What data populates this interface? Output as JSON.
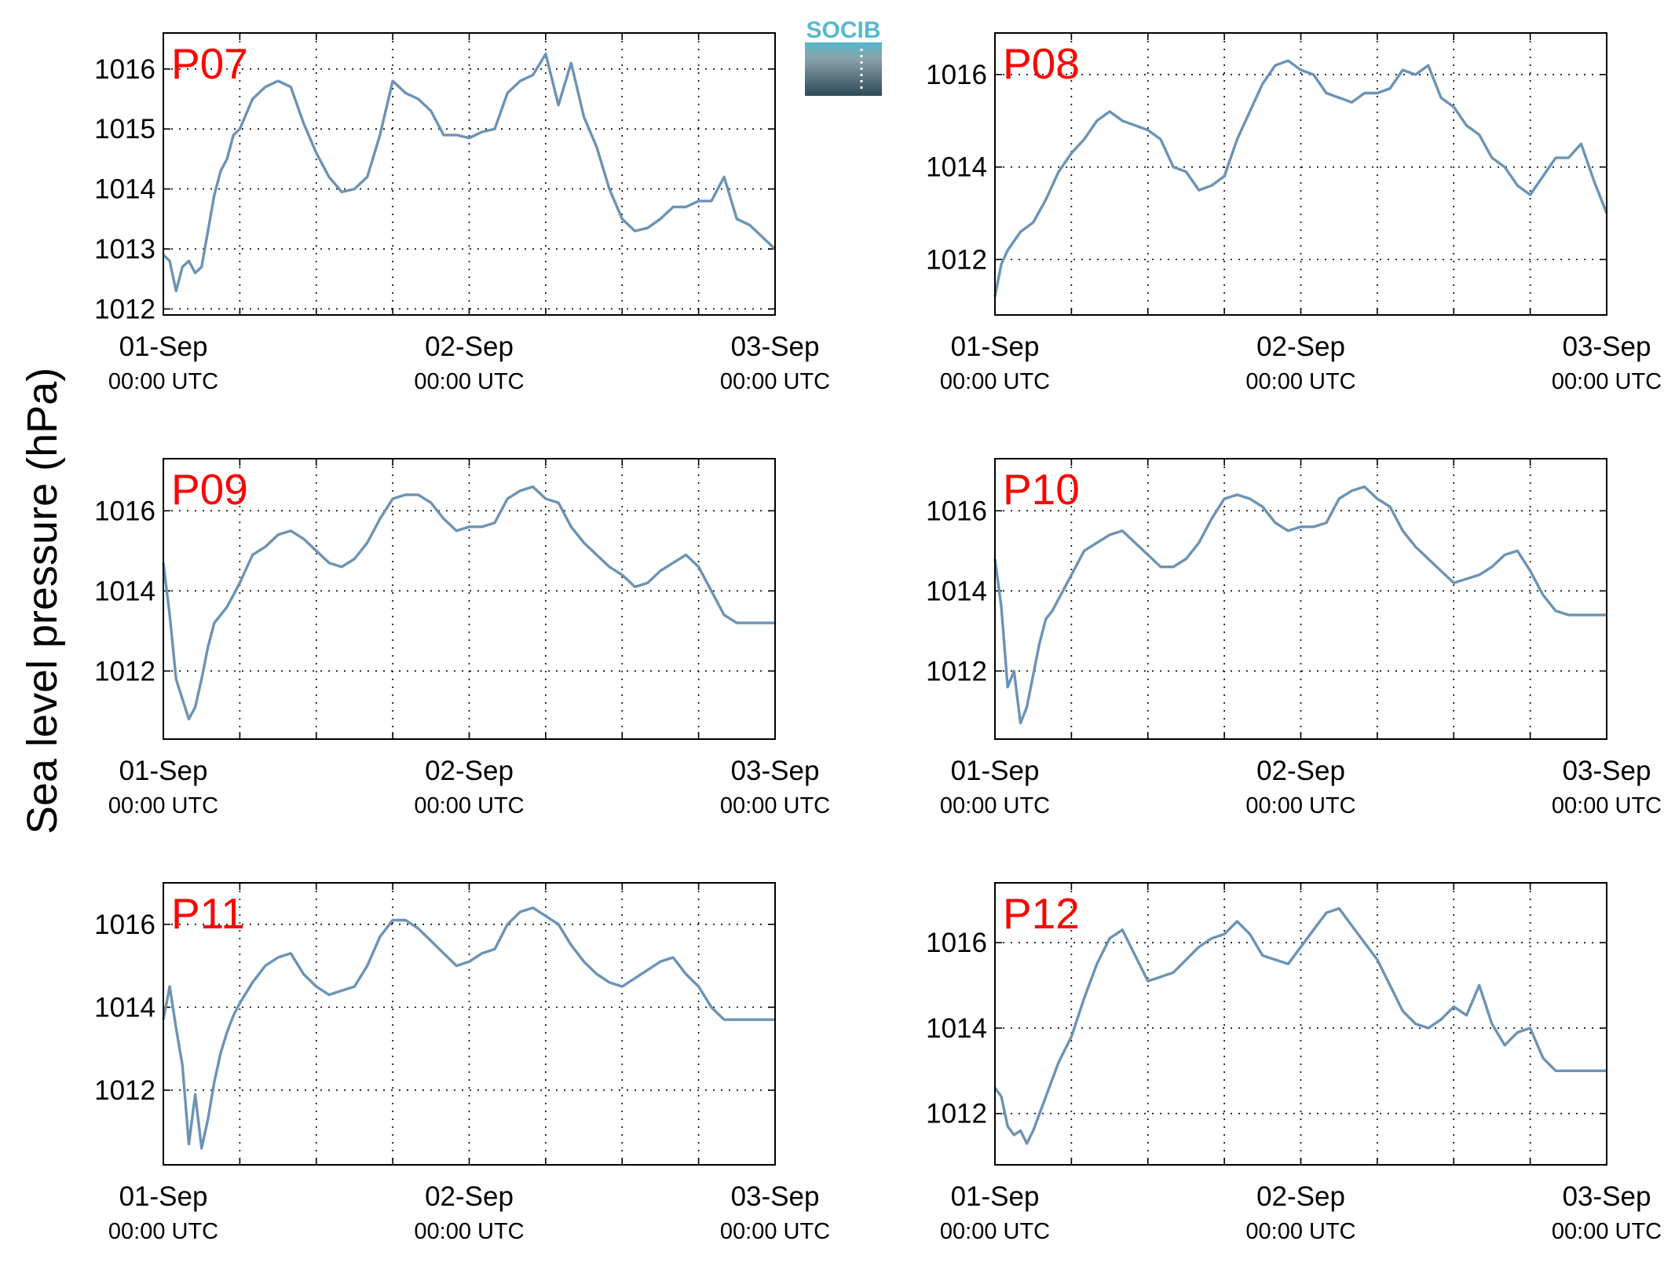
{
  "ylabel": "Sea level pressure (hPa)",
  "logo": {
    "text": "SOCIB",
    "accent": "#57b9cd",
    "dark": "#2e4a58"
  },
  "colors": {
    "line": "#6b93b5",
    "panel_label": "#ff0000",
    "axes": "#000000",
    "grid": "#000000"
  },
  "x_tick_dates": [
    "01-Sep",
    "02-Sep",
    "03-Sep"
  ],
  "x_tick_time": "00:00 UTC",
  "chart_data": [
    {
      "type": "line",
      "title": "P07",
      "grid": true,
      "xlabel": "",
      "ylabel": "Sea level pressure (hPa)",
      "xlim": [
        0,
        48
      ],
      "ylim": [
        1011.9,
        1016.6
      ],
      "yticks": [
        1012,
        1013,
        1014,
        1015,
        1016
      ],
      "series": [
        {
          "x": [
            0,
            0.5,
            1,
            1.5,
            2,
            2.5,
            3,
            3.5,
            4,
            4.5,
            5,
            5.5,
            6,
            7,
            8,
            9,
            10,
            11,
            12,
            13,
            14,
            15,
            16,
            17,
            18,
            19,
            20,
            21,
            22,
            23,
            24,
            25,
            26,
            27,
            28,
            29,
            30,
            31,
            32,
            33,
            34,
            35,
            36,
            37,
            38,
            39,
            40,
            41,
            42,
            43,
            44,
            45,
            46,
            47,
            48
          ],
          "y": [
            1012.9,
            1012.8,
            1012.3,
            1012.7,
            1012.8,
            1012.6,
            1012.7,
            1013.3,
            1013.9,
            1014.3,
            1014.5,
            1014.9,
            1015.0,
            1015.5,
            1015.7,
            1015.8,
            1015.7,
            1015.1,
            1014.6,
            1014.2,
            1013.95,
            1014.0,
            1014.2,
            1014.9,
            1015.8,
            1015.6,
            1015.5,
            1015.3,
            1014.9,
            1014.9,
            1014.85,
            1014.95,
            1015.0,
            1015.6,
            1015.8,
            1015.9,
            1016.25,
            1015.4,
            1016.1,
            1015.2,
            1014.7,
            1014.0,
            1013.5,
            1013.3,
            1013.35,
            1013.5,
            1013.7,
            1013.7,
            1013.8,
            1013.8,
            1014.2,
            1013.5,
            1013.4,
            1013.2,
            1013.0
          ]
        }
      ]
    },
    {
      "type": "line",
      "title": "P08",
      "grid": true,
      "xlabel": "",
      "ylabel": "Sea level pressure (hPa)",
      "xlim": [
        0,
        48
      ],
      "ylim": [
        1010.8,
        1016.9
      ],
      "yticks": [
        1012,
        1014,
        1016
      ],
      "series": [
        {
          "x": [
            0,
            0.5,
            1,
            2,
            3,
            4,
            5,
            6,
            7,
            8,
            9,
            10,
            11,
            12,
            13,
            14,
            15,
            16,
            17,
            18,
            19,
            20,
            21,
            22,
            23,
            24,
            25,
            26,
            27,
            28,
            29,
            30,
            31,
            32,
            33,
            34,
            35,
            36,
            37,
            38,
            39,
            40,
            41,
            42,
            43,
            44,
            45,
            46,
            47,
            48
          ],
          "y": [
            1011.2,
            1011.9,
            1012.2,
            1012.6,
            1012.8,
            1013.3,
            1013.9,
            1014.3,
            1014.6,
            1015.0,
            1015.2,
            1015.0,
            1014.9,
            1014.8,
            1014.6,
            1014.0,
            1013.9,
            1013.5,
            1013.6,
            1013.8,
            1014.6,
            1015.2,
            1015.8,
            1016.2,
            1016.3,
            1016.1,
            1016.0,
            1015.6,
            1015.5,
            1015.4,
            1015.6,
            1015.6,
            1015.7,
            1016.1,
            1016.0,
            1016.2,
            1015.5,
            1015.3,
            1014.9,
            1014.7,
            1014.2,
            1014.0,
            1013.6,
            1013.4,
            1013.8,
            1014.2,
            1014.2,
            1014.5,
            1013.7,
            1013.0
          ]
        }
      ]
    },
    {
      "type": "line",
      "title": "P09",
      "grid": true,
      "xlabel": "",
      "ylabel": "Sea level pressure (hPa)",
      "xlim": [
        0,
        48
      ],
      "ylim": [
        1010.3,
        1017.3
      ],
      "yticks": [
        1012,
        1014,
        1016
      ],
      "series": [
        {
          "x": [
            0,
            0.5,
            1,
            1.5,
            2,
            2.5,
            3,
            3.5,
            4,
            4.5,
            5,
            5.5,
            6,
            7,
            8,
            9,
            10,
            11,
            12,
            13,
            14,
            15,
            16,
            17,
            18,
            19,
            20,
            21,
            22,
            23,
            24,
            25,
            26,
            27,
            28,
            29,
            30,
            31,
            32,
            33,
            34,
            35,
            36,
            37,
            38,
            39,
            40,
            41,
            42,
            43,
            44,
            45,
            46,
            47,
            48
          ],
          "y": [
            1014.7,
            1013.4,
            1011.8,
            1011.3,
            1010.8,
            1011.1,
            1011.8,
            1012.6,
            1013.2,
            1013.4,
            1013.6,
            1013.9,
            1014.2,
            1014.9,
            1015.1,
            1015.4,
            1015.5,
            1015.3,
            1015.0,
            1014.7,
            1014.6,
            1014.8,
            1015.2,
            1015.8,
            1016.3,
            1016.4,
            1016.4,
            1016.2,
            1015.8,
            1015.5,
            1015.6,
            1015.6,
            1015.7,
            1016.3,
            1016.5,
            1016.6,
            1016.3,
            1016.2,
            1015.6,
            1015.2,
            1014.9,
            1014.6,
            1014.4,
            1014.1,
            1014.2,
            1014.5,
            1014.7,
            1014.9,
            1014.6,
            1014.0,
            1013.4,
            1013.2,
            1013.2,
            1013.2,
            1013.2
          ]
        }
      ]
    },
    {
      "type": "line",
      "title": "P10",
      "grid": true,
      "xlabel": "",
      "ylabel": "Sea level pressure (hPa)",
      "xlim": [
        0,
        48
      ],
      "ylim": [
        1010.3,
        1017.3
      ],
      "yticks": [
        1012,
        1014,
        1016
      ],
      "series": [
        {
          "x": [
            0,
            0.5,
            1,
            1.5,
            2,
            2.5,
            3,
            3.5,
            4,
            4.5,
            5,
            5.5,
            6,
            7,
            8,
            9,
            10,
            11,
            12,
            13,
            14,
            15,
            16,
            17,
            18,
            19,
            20,
            21,
            22,
            23,
            24,
            25,
            26,
            27,
            28,
            29,
            30,
            31,
            32,
            33,
            34,
            35,
            36,
            37,
            38,
            39,
            40,
            41,
            42,
            43,
            44,
            45,
            46,
            47,
            48
          ],
          "y": [
            1014.8,
            1013.6,
            1011.6,
            1012.0,
            1010.7,
            1011.1,
            1011.9,
            1012.7,
            1013.3,
            1013.5,
            1013.8,
            1014.1,
            1014.4,
            1015.0,
            1015.2,
            1015.4,
            1015.5,
            1015.2,
            1014.9,
            1014.6,
            1014.6,
            1014.8,
            1015.2,
            1015.8,
            1016.3,
            1016.4,
            1016.3,
            1016.1,
            1015.7,
            1015.5,
            1015.6,
            1015.6,
            1015.7,
            1016.3,
            1016.5,
            1016.6,
            1016.3,
            1016.1,
            1015.5,
            1015.1,
            1014.8,
            1014.5,
            1014.2,
            1014.3,
            1014.4,
            1014.6,
            1014.9,
            1015.0,
            1014.5,
            1013.9,
            1013.5,
            1013.4,
            1013.4,
            1013.4,
            1013.4
          ]
        }
      ]
    },
    {
      "type": "line",
      "title": "P11",
      "grid": true,
      "xlabel": "",
      "ylabel": "Sea level pressure (hPa)",
      "xlim": [
        0,
        48
      ],
      "ylim": [
        1010.2,
        1017.0
      ],
      "yticks": [
        1012,
        1014,
        1016
      ],
      "series": [
        {
          "x": [
            0,
            0.5,
            1,
            1.5,
            2,
            2.5,
            3,
            3.5,
            4,
            4.5,
            5,
            5.5,
            6,
            7,
            8,
            9,
            10,
            11,
            12,
            13,
            14,
            15,
            16,
            17,
            18,
            19,
            20,
            21,
            22,
            23,
            24,
            25,
            26,
            27,
            28,
            29,
            30,
            31,
            32,
            33,
            34,
            35,
            36,
            37,
            38,
            39,
            40,
            41,
            42,
            43,
            44,
            45,
            46,
            47,
            48
          ],
          "y": [
            1013.7,
            1014.5,
            1013.5,
            1012.6,
            1010.7,
            1011.9,
            1010.6,
            1011.3,
            1012.2,
            1012.9,
            1013.4,
            1013.8,
            1014.1,
            1014.6,
            1015.0,
            1015.2,
            1015.3,
            1014.8,
            1014.5,
            1014.3,
            1014.4,
            1014.5,
            1015.0,
            1015.7,
            1016.1,
            1016.1,
            1015.9,
            1015.6,
            1015.3,
            1015.0,
            1015.1,
            1015.3,
            1015.4,
            1016.0,
            1016.3,
            1016.4,
            1016.2,
            1016.0,
            1015.5,
            1015.1,
            1014.8,
            1014.6,
            1014.5,
            1014.7,
            1014.9,
            1015.1,
            1015.2,
            1014.8,
            1014.5,
            1014.0,
            1013.7,
            1013.7,
            1013.7,
            1013.7,
            1013.7
          ]
        }
      ]
    },
    {
      "type": "line",
      "title": "P12",
      "grid": true,
      "xlabel": "",
      "ylabel": "Sea level pressure (hPa)",
      "xlim": [
        0,
        48
      ],
      "ylim": [
        1010.8,
        1017.4
      ],
      "yticks": [
        1012,
        1014,
        1016
      ],
      "series": [
        {
          "x": [
            0,
            0.5,
            1,
            1.5,
            2,
            2.5,
            3,
            4,
            5,
            6,
            7,
            8,
            9,
            10,
            11,
            12,
            13,
            14,
            15,
            16,
            17,
            18,
            19,
            20,
            21,
            22,
            23,
            24,
            25,
            26,
            27,
            28,
            29,
            30,
            31,
            32,
            33,
            34,
            35,
            36,
            37,
            38,
            39,
            40,
            41,
            42,
            43,
            44,
            45,
            46,
            47,
            48
          ],
          "y": [
            1012.6,
            1012.4,
            1011.7,
            1011.5,
            1011.6,
            1011.3,
            1011.6,
            1012.4,
            1013.2,
            1013.8,
            1014.7,
            1015.5,
            1016.1,
            1016.3,
            1015.7,
            1015.1,
            1015.2,
            1015.3,
            1015.6,
            1015.9,
            1016.1,
            1016.2,
            1016.5,
            1016.2,
            1015.7,
            1015.6,
            1015.5,
            1015.9,
            1016.3,
            1016.7,
            1016.8,
            1016.4,
            1016.0,
            1015.6,
            1015.0,
            1014.4,
            1014.1,
            1014.0,
            1014.2,
            1014.5,
            1014.3,
            1015.0,
            1014.1,
            1013.6,
            1013.9,
            1014.0,
            1013.3,
            1013.0,
            1013.0,
            1013.0,
            1013.0,
            1013.0
          ]
        }
      ]
    }
  ]
}
